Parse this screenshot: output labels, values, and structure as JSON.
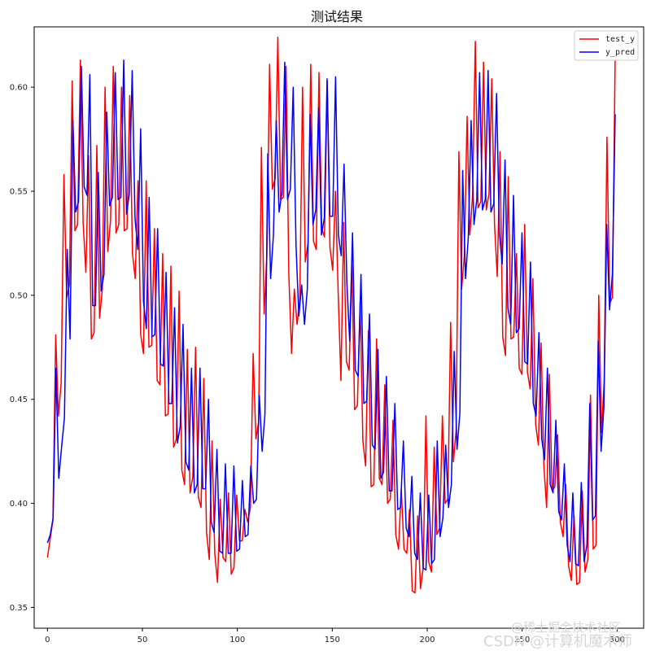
{
  "chart_data": {
    "type": "line",
    "title": "测试结果",
    "xlabel": "",
    "ylabel": "",
    "xlim": [
      -7,
      314
    ],
    "ylim": [
      0.34,
      0.629
    ],
    "xticks": [
      0,
      50,
      100,
      150,
      200,
      250,
      300
    ],
    "yticks": [
      0.35,
      0.4,
      0.45,
      0.5,
      0.55,
      0.6
    ],
    "ytick_labels": [
      "0.35",
      "0.40",
      "0.45",
      "0.50",
      "0.55",
      "0.60"
    ],
    "grid": false,
    "legend": "top-right",
    "x_start": 0,
    "x_end": 299,
    "series": [
      {
        "name": "test_y",
        "color": "#ff0000",
        "values": [
          0.374,
          0.383,
          0.392,
          0.481,
          0.442,
          0.458,
          0.558,
          0.499,
          0.505,
          0.603,
          0.531,
          0.534,
          0.613,
          0.535,
          0.511,
          0.567,
          0.479,
          0.482,
          0.572,
          0.489,
          0.503,
          0.6,
          0.521,
          0.536,
          0.61,
          0.53,
          0.534,
          0.6,
          0.531,
          0.532,
          0.596,
          0.52,
          0.508,
          0.555,
          0.481,
          0.472,
          0.555,
          0.475,
          0.476,
          0.532,
          0.459,
          0.457,
          0.52,
          0.442,
          0.443,
          0.514,
          0.427,
          0.431,
          0.502,
          0.416,
          0.409,
          0.474,
          0.405,
          0.413,
          0.475,
          0.403,
          0.398,
          0.46,
          0.386,
          0.373,
          0.43,
          0.376,
          0.362,
          0.402,
          0.374,
          0.372,
          0.405,
          0.366,
          0.369,
          0.404,
          0.382,
          0.382,
          0.397,
          0.391,
          0.398,
          0.472,
          0.431,
          0.439,
          0.571,
          0.491,
          0.519,
          0.611,
          0.551,
          0.556,
          0.624,
          0.546,
          0.547,
          0.61,
          0.51,
          0.472,
          0.503,
          0.486,
          0.497,
          0.6,
          0.516,
          0.525,
          0.611,
          0.526,
          0.522,
          0.607,
          0.532,
          0.528,
          0.603,
          0.523,
          0.512,
          0.55,
          0.501,
          0.459,
          0.535,
          0.468,
          0.464,
          0.514,
          0.445,
          0.447,
          0.497,
          0.43,
          0.418,
          0.483,
          0.408,
          0.409,
          0.479,
          0.412,
          0.409,
          0.457,
          0.4,
          0.402,
          0.44,
          0.385,
          0.378,
          0.407,
          0.378,
          0.376,
          0.397,
          0.358,
          0.357,
          0.394,
          0.359,
          0.369,
          0.442,
          0.372,
          0.367,
          0.427,
          0.385,
          0.388,
          0.442,
          0.4,
          0.402,
          0.487,
          0.42,
          0.435,
          0.569,
          0.503,
          0.519,
          0.586,
          0.529,
          0.548,
          0.622,
          0.542,
          0.545,
          0.612,
          0.541,
          0.549,
          0.604,
          0.534,
          0.509,
          0.569,
          0.48,
          0.471,
          0.557,
          0.479,
          0.48,
          0.52,
          0.465,
          0.462,
          0.534,
          0.463,
          0.455,
          0.508,
          0.438,
          0.428,
          0.477,
          0.418,
          0.398,
          0.462,
          0.406,
          0.408,
          0.433,
          0.391,
          0.384,
          0.409,
          0.37,
          0.363,
          0.394,
          0.361,
          0.362,
          0.406,
          0.367,
          0.373,
          0.452,
          0.378,
          0.38,
          0.5,
          0.434,
          0.459,
          0.576,
          0.496,
          0.499,
          0.616
        ]
      },
      {
        "name": "y_pred",
        "color": "#0000ff",
        "values": [
          0.381,
          0.385,
          0.393,
          0.465,
          0.412,
          0.427,
          0.441,
          0.522,
          0.479,
          0.584,
          0.54,
          0.545,
          0.61,
          0.552,
          0.548,
          0.606,
          0.495,
          0.495,
          0.559,
          0.502,
          0.51,
          0.588,
          0.543,
          0.547,
          0.607,
          0.546,
          0.547,
          0.613,
          0.539,
          0.549,
          0.608,
          0.537,
          0.522,
          0.58,
          0.497,
          0.484,
          0.547,
          0.48,
          0.481,
          0.532,
          0.467,
          0.466,
          0.511,
          0.448,
          0.448,
          0.494,
          0.429,
          0.437,
          0.486,
          0.42,
          0.416,
          0.465,
          0.405,
          0.409,
          0.465,
          0.407,
          0.407,
          0.45,
          0.391,
          0.386,
          0.426,
          0.377,
          0.376,
          0.419,
          0.376,
          0.376,
          0.418,
          0.377,
          0.378,
          0.411,
          0.384,
          0.385,
          0.418,
          0.4,
          0.402,
          0.452,
          0.425,
          0.443,
          0.568,
          0.508,
          0.529,
          0.584,
          0.54,
          0.549,
          0.612,
          0.546,
          0.551,
          0.6,
          0.524,
          0.49,
          0.505,
          0.486,
          0.503,
          0.587,
          0.534,
          0.541,
          0.59,
          0.529,
          0.537,
          0.604,
          0.538,
          0.538,
          0.605,
          0.529,
          0.519,
          0.563,
          0.506,
          0.478,
          0.53,
          0.464,
          0.461,
          0.51,
          0.448,
          0.449,
          0.491,
          0.428,
          0.426,
          0.474,
          0.412,
          0.415,
          0.461,
          0.406,
          0.406,
          0.448,
          0.397,
          0.398,
          0.43,
          0.388,
          0.384,
          0.413,
          0.376,
          0.373,
          0.405,
          0.369,
          0.368,
          0.404,
          0.371,
          0.373,
          0.43,
          0.384,
          0.393,
          0.428,
          0.398,
          0.409,
          0.473,
          0.426,
          0.443,
          0.56,
          0.508,
          0.528,
          0.584,
          0.534,
          0.546,
          0.607,
          0.541,
          0.546,
          0.608,
          0.54,
          0.544,
          0.597,
          0.53,
          0.515,
          0.565,
          0.494,
          0.486,
          0.548,
          0.482,
          0.484,
          0.53,
          0.468,
          0.467,
          0.516,
          0.448,
          0.442,
          0.482,
          0.431,
          0.421,
          0.465,
          0.409,
          0.405,
          0.44,
          0.396,
          0.392,
          0.419,
          0.38,
          0.372,
          0.405,
          0.371,
          0.37,
          0.41,
          0.372,
          0.38,
          0.448,
          0.392,
          0.394,
          0.478,
          0.425,
          0.446,
          0.534,
          0.493,
          0.51,
          0.587
        ]
      }
    ]
  },
  "watermark": {
    "line1": "@稀土掘金技术社区",
    "line2": "CSDN @计算机魔术师"
  }
}
